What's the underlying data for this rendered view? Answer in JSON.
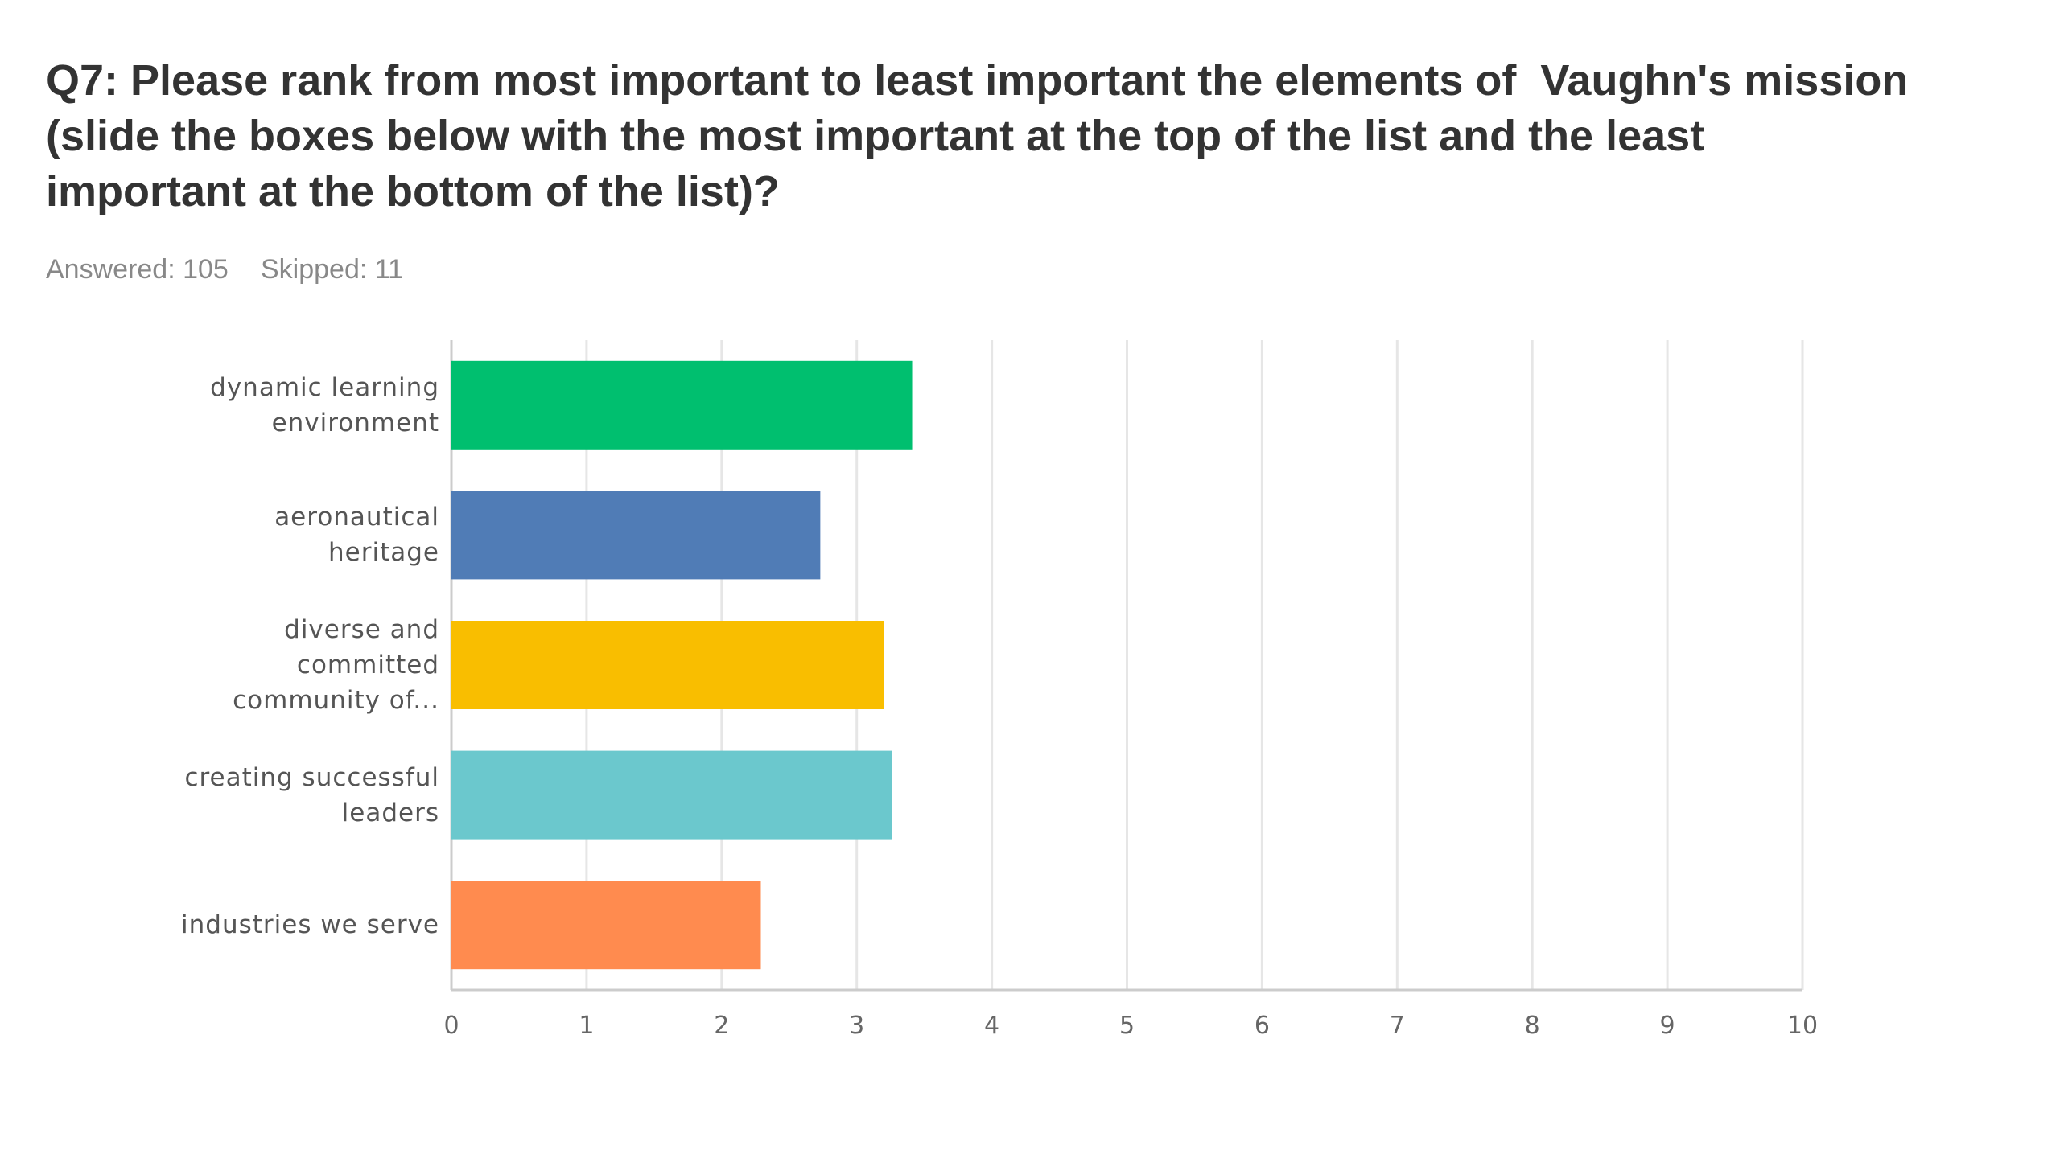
{
  "chart_data": {
    "type": "bar",
    "orientation": "horizontal",
    "title": "Q7: Please rank from most important to least important the elements of  Vaughn's mission (slide the boxes below with the most important at the top of the list and the least important at the bottom of the list)?",
    "answered": "Answered: 105",
    "skipped": "Skipped: 11",
    "categories": [
      "dynamic learning environment",
      "aeronautical heritage",
      "diverse and committed community of...",
      "creating successful leaders",
      "industries we serve"
    ],
    "values": [
      3.41,
      2.73,
      3.2,
      3.26,
      2.29
    ],
    "colors": [
      "#00bf6f",
      "#507cb6",
      "#f9be00",
      "#6bc8cd",
      "#ff8b4f"
    ],
    "xlim": [
      0,
      10
    ],
    "xticks": [
      0,
      1,
      2,
      3,
      4,
      5,
      6,
      7,
      8,
      9,
      10
    ],
    "grid": true
  }
}
